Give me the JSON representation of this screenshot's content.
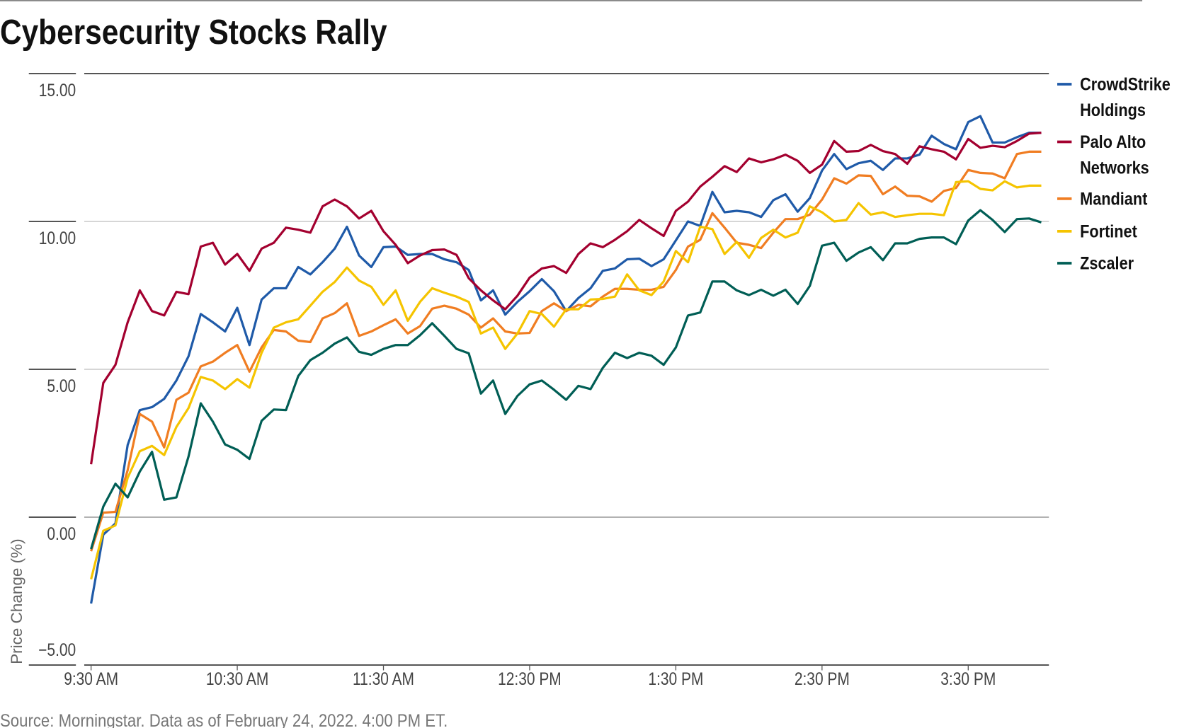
{
  "chart_data": {
    "type": "line",
    "title": "Cybersecurity Stocks Rally",
    "xlabel": "",
    "ylabel": "Price Change (%)",
    "ylim": [
      -5,
      15
    ],
    "yticks": [
      "15.00",
      "10.00",
      "5.00",
      "0.00",
      "−5.00"
    ],
    "ytick_values": [
      15,
      10,
      5,
      0,
      -5
    ],
    "xticks": [
      "9:30 AM",
      "10:30 AM",
      "11:30 AM",
      "12:30 PM",
      "1:30 PM",
      "2:30 PM",
      "3:30 PM"
    ],
    "x_interval_minutes": 5,
    "x_start": "9:30 AM",
    "x_end": "4:00 PM",
    "legend_position": "right",
    "grid": true,
    "series": [
      {
        "name": "CrowdStrike Holdings",
        "name_lines": [
          "CrowdStrike",
          "Holdings"
        ],
        "color": "#1f5aa8",
        "values": [
          -2.92,
          -0.59,
          -0.21,
          2.44,
          3.62,
          3.72,
          4.0,
          4.62,
          5.44,
          6.87,
          6.59,
          6.28,
          7.08,
          5.82,
          7.36,
          7.74,
          7.74,
          8.46,
          8.21,
          8.62,
          9.08,
          9.82,
          8.85,
          8.46,
          9.13,
          9.15,
          8.87,
          8.9,
          8.9,
          8.72,
          8.62,
          8.36,
          7.33,
          7.67,
          6.85,
          7.28,
          7.64,
          8.05,
          7.64,
          6.97,
          7.41,
          7.74,
          8.33,
          8.41,
          8.72,
          8.74,
          8.49,
          8.72,
          9.36,
          10.0,
          9.85,
          11.0,
          10.31,
          10.36,
          10.31,
          10.15,
          10.72,
          10.92,
          10.33,
          10.79,
          11.72,
          12.28,
          11.77,
          11.97,
          12.05,
          11.74,
          12.13,
          12.13,
          12.26,
          12.9,
          12.62,
          12.44,
          13.36,
          13.56,
          12.67,
          12.67,
          12.85,
          13.0,
          13.0
        ]
      },
      {
        "name": "Palo Alto Networks",
        "name_lines": [
          "Palo Alto",
          "Networks"
        ],
        "color": "#a3002f",
        "values": [
          1.79,
          4.54,
          5.15,
          6.59,
          7.67,
          6.97,
          6.82,
          7.62,
          7.54,
          9.15,
          9.28,
          8.54,
          8.9,
          8.33,
          9.08,
          9.28,
          9.79,
          9.72,
          9.62,
          10.51,
          10.74,
          10.51,
          10.1,
          10.36,
          9.67,
          9.21,
          8.59,
          8.85,
          9.03,
          9.05,
          8.87,
          8.08,
          7.67,
          7.33,
          7.03,
          7.49,
          8.1,
          8.41,
          8.49,
          8.26,
          8.9,
          9.26,
          9.13,
          9.38,
          9.67,
          10.05,
          9.77,
          9.51,
          10.36,
          10.67,
          11.18,
          11.51,
          11.87,
          11.67,
          12.13,
          12.0,
          12.1,
          12.26,
          12.05,
          11.64,
          11.92,
          12.72,
          12.36,
          12.38,
          12.59,
          12.38,
          12.28,
          11.95,
          12.54,
          12.44,
          12.36,
          12.1,
          12.79,
          12.49,
          12.56,
          12.51,
          12.72,
          12.97,
          13.0
        ]
      },
      {
        "name": "Mandiant",
        "name_lines": [
          "Mandiant"
        ],
        "color": "#f07d22",
        "values": [
          -1.15,
          0.15,
          0.18,
          1.59,
          3.49,
          3.23,
          2.36,
          3.97,
          4.21,
          5.1,
          5.26,
          5.56,
          5.82,
          4.92,
          5.74,
          6.33,
          6.28,
          5.97,
          5.92,
          6.72,
          6.9,
          7.23,
          6.13,
          6.28,
          6.49,
          6.69,
          6.21,
          6.46,
          7.05,
          7.15,
          7.05,
          6.85,
          6.41,
          6.72,
          6.28,
          6.21,
          6.23,
          6.97,
          7.23,
          6.97,
          7.18,
          7.13,
          7.46,
          7.72,
          7.72,
          7.69,
          7.69,
          7.79,
          8.36,
          9.15,
          9.38,
          10.28,
          9.79,
          9.28,
          9.21,
          9.1,
          9.62,
          10.08,
          10.08,
          10.23,
          10.74,
          11.46,
          11.28,
          11.56,
          11.54,
          10.92,
          11.18,
          10.87,
          10.85,
          10.67,
          11.03,
          11.13,
          11.74,
          11.64,
          11.62,
          11.46,
          12.28,
          12.36,
          12.36
        ]
      },
      {
        "name": "Fortinet",
        "name_lines": [
          "Fortinet"
        ],
        "color": "#f5c400",
        "values": [
          -2.1,
          -0.46,
          -0.28,
          1.33,
          2.23,
          2.41,
          2.1,
          3.05,
          3.69,
          4.74,
          4.62,
          4.33,
          4.67,
          4.38,
          5.56,
          6.41,
          6.59,
          6.69,
          7.15,
          7.62,
          7.95,
          8.44,
          8.0,
          7.79,
          7.18,
          7.67,
          6.64,
          7.28,
          7.74,
          7.59,
          7.46,
          7.28,
          6.21,
          6.41,
          5.69,
          6.21,
          6.97,
          6.87,
          6.44,
          7.03,
          7.03,
          7.36,
          7.38,
          7.46,
          8.21,
          7.67,
          7.51,
          7.97,
          9.0,
          8.62,
          9.82,
          9.74,
          8.9,
          9.31,
          8.77,
          9.44,
          9.72,
          9.46,
          9.62,
          10.51,
          10.31,
          10.0,
          10.05,
          10.62,
          10.23,
          10.31,
          10.15,
          10.21,
          10.26,
          10.26,
          10.21,
          11.33,
          11.36,
          11.1,
          11.05,
          11.36,
          11.15,
          11.21,
          11.21
        ]
      },
      {
        "name": "Zscaler",
        "name_lines": [
          "Zscaler"
        ],
        "color": "#005e55",
        "values": [
          -1.08,
          0.36,
          1.13,
          0.67,
          1.54,
          2.21,
          0.59,
          0.67,
          2.05,
          3.85,
          3.23,
          2.46,
          2.28,
          1.97,
          3.26,
          3.64,
          3.62,
          4.77,
          5.31,
          5.56,
          5.87,
          6.08,
          5.59,
          5.49,
          5.69,
          5.82,
          5.82,
          6.15,
          6.56,
          6.13,
          5.69,
          5.54,
          4.18,
          4.62,
          3.49,
          4.1,
          4.49,
          4.62,
          4.31,
          3.97,
          4.44,
          4.33,
          5.05,
          5.56,
          5.38,
          5.56,
          5.46,
          5.15,
          5.74,
          6.82,
          6.92,
          7.97,
          7.97,
          7.67,
          7.51,
          7.69,
          7.49,
          7.69,
          7.21,
          7.82,
          9.18,
          9.28,
          8.67,
          8.95,
          9.13,
          8.69,
          9.26,
          9.26,
          9.41,
          9.46,
          9.46,
          9.23,
          10.03,
          10.38,
          10.05,
          9.64,
          10.08,
          10.1,
          9.97
        ]
      }
    ],
    "source": "Source: Morningstar. Data as of February 24, 2022. 4:00 PM ET."
  }
}
